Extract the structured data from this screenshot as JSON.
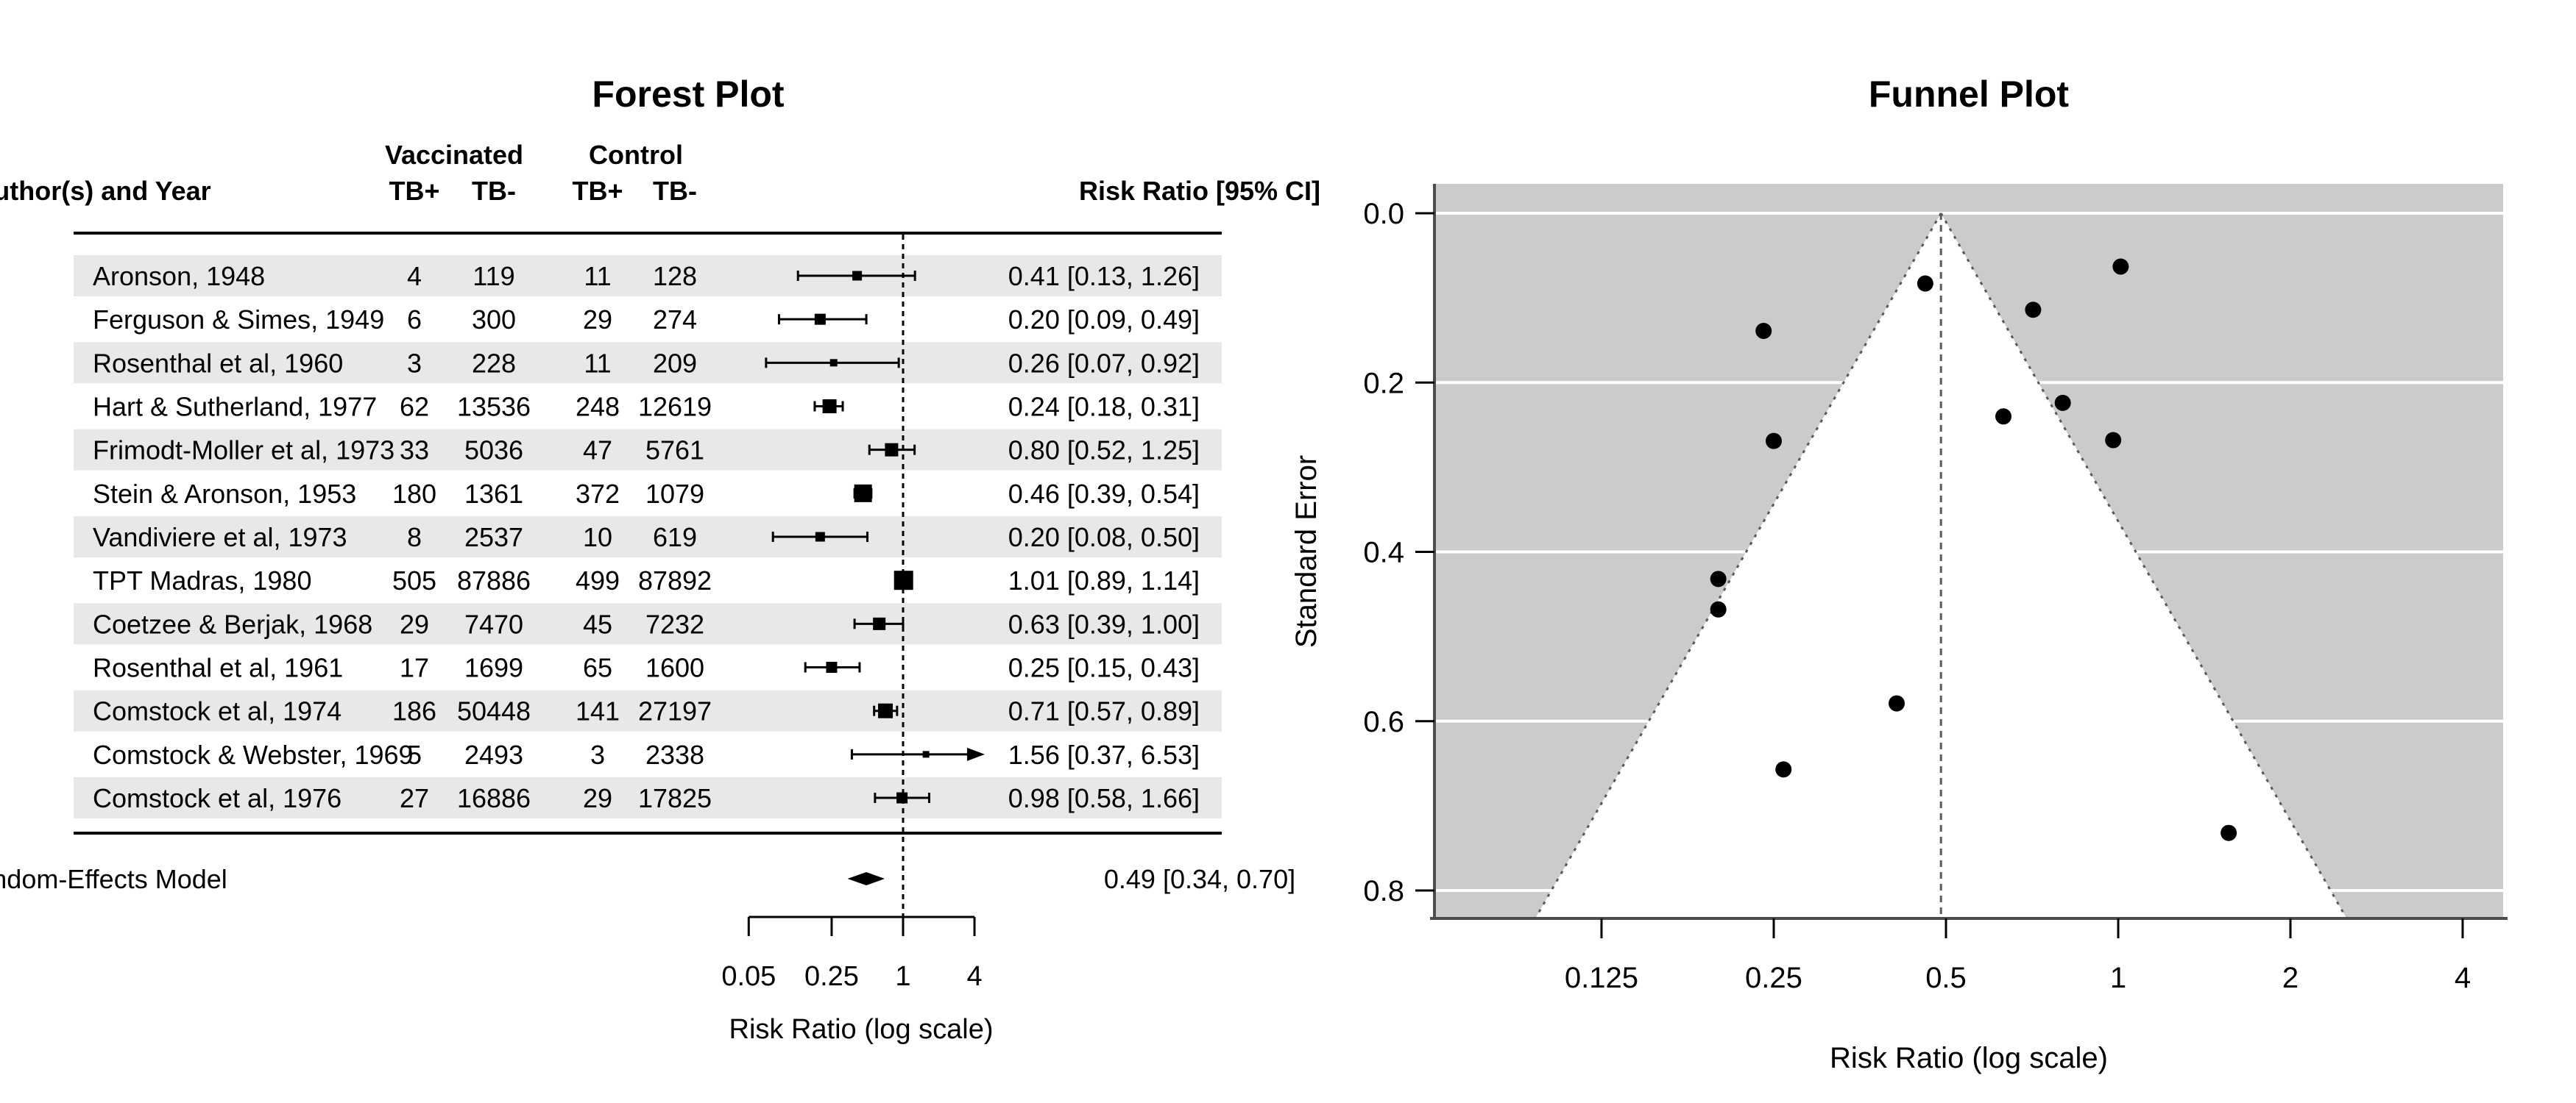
{
  "colors": {
    "stripe": "#e8e8e8",
    "funnel_background": "#cbcbcb",
    "funnel_region": "#ffffff",
    "gridline": "#ffffff",
    "axis_line": "#4d4d4d",
    "dotted_line": "#5a5a5a",
    "ink": "#000000"
  },
  "chart_data": [
    {
      "type": "forest",
      "title": "Forest Plot",
      "xlabel": "Risk Ratio (log scale)",
      "headers": {
        "author": "Author(s) and Year",
        "group_vaccinated": "Vaccinated",
        "group_control": "Control",
        "tb_pos": "TB+",
        "tb_neg": "TB-",
        "effect": "Risk Ratio [95% CI]"
      },
      "x_ticks": [
        0.05,
        0.25,
        1,
        4
      ],
      "x_tick_labels": [
        "0.05",
        "0.25",
        "1",
        "4"
      ],
      "xlim": [
        0.05,
        4
      ],
      "reference_line": 1,
      "grid": false,
      "studies": [
        {
          "author": "Aronson, 1948",
          "vaccinated_tb_pos": 4,
          "vaccinated_tb_neg": 119,
          "control_tb_pos": 11,
          "control_tb_neg": 128,
          "rr": 0.41,
          "ci_lo": 0.13,
          "ci_hi": 1.26,
          "estimate": "0.41 [0.13, 1.26]",
          "marker_px": 13,
          "shaded": true
        },
        {
          "author": "Ferguson & Simes, 1949",
          "vaccinated_tb_pos": 6,
          "vaccinated_tb_neg": 300,
          "control_tb_pos": 29,
          "control_tb_neg": 274,
          "rr": 0.2,
          "ci_lo": 0.09,
          "ci_hi": 0.49,
          "estimate": "0.20 [0.09, 0.49]",
          "marker_px": 15,
          "shaded": false
        },
        {
          "author": "Rosenthal et al, 1960",
          "vaccinated_tb_pos": 3,
          "vaccinated_tb_neg": 228,
          "control_tb_pos": 11,
          "control_tb_neg": 209,
          "rr": 0.26,
          "ci_lo": 0.07,
          "ci_hi": 0.92,
          "estimate": "0.26 [0.07, 0.92]",
          "marker_px": 10,
          "shaded": true
        },
        {
          "author": "Hart & Sutherland, 1977",
          "vaccinated_tb_pos": 62,
          "vaccinated_tb_neg": 13536,
          "control_tb_pos": 248,
          "control_tb_neg": 12619,
          "rr": 0.24,
          "ci_lo": 0.18,
          "ci_hi": 0.31,
          "estimate": "0.24 [0.18, 0.31]",
          "marker_px": 19,
          "shaded": false
        },
        {
          "author": "Frimodt-Moller et al, 1973",
          "vaccinated_tb_pos": 33,
          "vaccinated_tb_neg": 5036,
          "control_tb_pos": 47,
          "control_tb_neg": 5761,
          "rr": 0.8,
          "ci_lo": 0.52,
          "ci_hi": 1.25,
          "estimate": "0.80 [0.52, 1.25]",
          "marker_px": 18,
          "shaded": true
        },
        {
          "author": "Stein & Aronson, 1953",
          "vaccinated_tb_pos": 180,
          "vaccinated_tb_neg": 1361,
          "control_tb_pos": 372,
          "control_tb_neg": 1079,
          "rr": 0.46,
          "ci_lo": 0.39,
          "ci_hi": 0.54,
          "estimate": "0.46 [0.39, 0.54]",
          "marker_px": 24,
          "shaded": false
        },
        {
          "author": "Vandiviere et al, 1973",
          "vaccinated_tb_pos": 8,
          "vaccinated_tb_neg": 2537,
          "control_tb_pos": 10,
          "control_tb_neg": 619,
          "rr": 0.2,
          "ci_lo": 0.08,
          "ci_hi": 0.5,
          "estimate": "0.20 [0.08, 0.50]",
          "marker_px": 13,
          "shaded": true
        },
        {
          "author": "TPT Madras, 1980",
          "vaccinated_tb_pos": 505,
          "vaccinated_tb_neg": 87886,
          "control_tb_pos": 499,
          "control_tb_neg": 87892,
          "rr": 1.01,
          "ci_lo": 0.89,
          "ci_hi": 1.14,
          "estimate": "1.01 [0.89, 1.14]",
          "marker_px": 26,
          "shaded": false
        },
        {
          "author": "Coetzee & Berjak, 1968",
          "vaccinated_tb_pos": 29,
          "vaccinated_tb_neg": 7470,
          "control_tb_pos": 45,
          "control_tb_neg": 7232,
          "rr": 0.63,
          "ci_lo": 0.39,
          "ci_hi": 1.0,
          "estimate": "0.63 [0.39, 1.00]",
          "marker_px": 17,
          "shaded": true
        },
        {
          "author": "Rosenthal et al, 1961",
          "vaccinated_tb_pos": 17,
          "vaccinated_tb_neg": 1699,
          "control_tb_pos": 65,
          "control_tb_neg": 1600,
          "rr": 0.25,
          "ci_lo": 0.15,
          "ci_hi": 0.43,
          "estimate": "0.25 [0.15, 0.43]",
          "marker_px": 15,
          "shaded": false
        },
        {
          "author": "Comstock et al, 1974",
          "vaccinated_tb_pos": 186,
          "vaccinated_tb_neg": 50448,
          "control_tb_pos": 141,
          "control_tb_neg": 27197,
          "rr": 0.71,
          "ci_lo": 0.57,
          "ci_hi": 0.89,
          "estimate": "0.71 [0.57, 0.89]",
          "marker_px": 20,
          "shaded": true
        },
        {
          "author": "Comstock & Webster, 1969",
          "vaccinated_tb_pos": 5,
          "vaccinated_tb_neg": 2493,
          "control_tb_pos": 3,
          "control_tb_neg": 2338,
          "rr": 1.56,
          "ci_lo": 0.37,
          "ci_hi": 6.53,
          "estimate": "1.56 [0.37, 6.53]",
          "marker_px": 9,
          "shaded": false
        },
        {
          "author": "Comstock et al, 1976",
          "vaccinated_tb_pos": 27,
          "vaccinated_tb_neg": 16886,
          "control_tb_pos": 29,
          "control_tb_neg": 17825,
          "rr": 0.98,
          "ci_lo": 0.58,
          "ci_hi": 1.66,
          "estimate": "0.98 [0.58, 1.66]",
          "marker_px": 15,
          "shaded": true
        }
      ],
      "summary": {
        "label": "Random-Effects Model",
        "rr": 0.49,
        "ci_lo": 0.34,
        "ci_hi": 0.7,
        "estimate": "0.49 [0.34, 0.70]"
      }
    },
    {
      "type": "scatter",
      "title": "Funnel Plot",
      "xlabel": "Risk Ratio (log scale)",
      "ylabel": "Standard Error",
      "x_ticks": [
        0.125,
        0.25,
        0.5,
        1,
        2,
        4
      ],
      "x_tick_labels": [
        "0.125",
        "0.25",
        "0.5",
        "1",
        "2",
        "4"
      ],
      "y_ticks": [
        0.0,
        0.2,
        0.4,
        0.6,
        0.8
      ],
      "y_tick_labels": [
        "0.0",
        "0.2",
        "0.4",
        "0.6",
        "0.8"
      ],
      "ylim_se": [
        0,
        0.833
      ],
      "center_estimate": 0.49,
      "pseudo_ci_z": 1.96,
      "legend": "none",
      "points": [
        {
          "study": "Aronson, 1948",
          "rr": 0.41,
          "se": 0.579
        },
        {
          "study": "Ferguson & Simes, 1949",
          "rr": 0.2,
          "se": 0.432
        },
        {
          "study": "Rosenthal et al, 1960",
          "rr": 0.26,
          "se": 0.657
        },
        {
          "study": "Hart & Sutherland, 1977",
          "rr": 0.24,
          "se": 0.139
        },
        {
          "study": "Frimodt-Moller et al, 1973",
          "rr": 0.8,
          "se": 0.224
        },
        {
          "study": "Stein & Aronson, 1953",
          "rr": 0.46,
          "se": 0.083
        },
        {
          "study": "Vandiviere et al, 1973",
          "rr": 0.2,
          "se": 0.468
        },
        {
          "study": "TPT Madras, 1980",
          "rr": 1.01,
          "se": 0.063
        },
        {
          "study": "Coetzee & Berjak, 1968",
          "rr": 0.63,
          "se": 0.24
        },
        {
          "study": "Rosenthal et al, 1961",
          "rr": 0.25,
          "se": 0.269
        },
        {
          "study": "Comstock et al, 1974",
          "rr": 0.71,
          "se": 0.114
        },
        {
          "study": "Comstock & Webster, 1969",
          "rr": 1.56,
          "se": 0.732
        },
        {
          "study": "Comstock et al, 1976",
          "rr": 0.98,
          "se": 0.268
        }
      ]
    }
  ]
}
